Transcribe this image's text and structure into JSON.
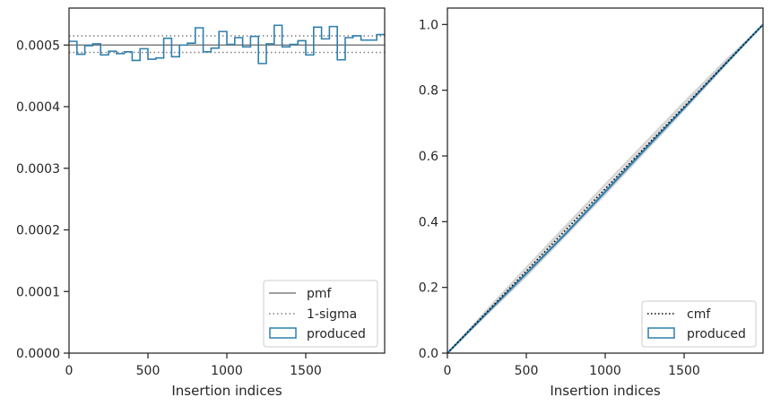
{
  "colors": {
    "produced": "#2f7fae",
    "pmf": "#7f7f7f",
    "sigma": "#7f7f7f",
    "cmf": "#000000",
    "spaghetti": "#d3d3d3",
    "axes": "#262626"
  },
  "chart_data": [
    {
      "type": "histogram",
      "xlabel": "Insertion indices",
      "ylabel": "",
      "xlim": [
        0,
        2000
      ],
      "ylim": [
        0,
        0.00056
      ],
      "x_ticks": [
        0,
        500,
        1000,
        1500
      ],
      "x_tick_labels": [
        "0",
        "500",
        "1000",
        "1500"
      ],
      "y_ticks": [
        0,
        0.0001,
        0.0002,
        0.0003,
        0.0004,
        0.0005
      ],
      "y_tick_labels": [
        "0.0000",
        "0.0001",
        "0.0002",
        "0.0003",
        "0.0004",
        "0.0005"
      ],
      "pmf": 0.0005,
      "sigma_band": [
        0.000488,
        0.000515
      ],
      "bin_width": 50,
      "bin_starts": [
        0,
        50,
        100,
        150,
        200,
        250,
        300,
        350,
        400,
        450,
        500,
        550,
        600,
        650,
        700,
        750,
        800,
        850,
        900,
        950,
        1000,
        1050,
        1100,
        1150,
        1200,
        1250,
        1300,
        1350,
        1400,
        1450,
        1500,
        1550,
        1600,
        1650,
        1700,
        1750,
        1800,
        1850,
        1900,
        1950
      ],
      "produced": [
        0.000506,
        0.000485,
        0.000499,
        0.000502,
        0.000484,
        0.00049,
        0.000486,
        0.000489,
        0.000475,
        0.000494,
        0.000477,
        0.000479,
        0.000511,
        0.000481,
        0.0005,
        0.000503,
        0.000528,
        0.000489,
        0.000495,
        0.000522,
        0.000501,
        0.000512,
        0.000497,
        0.000514,
        0.00047,
        0.000502,
        0.000532,
        0.000497,
        0.000501,
        0.000507,
        0.000484,
        0.000529,
        0.00051,
        0.00053,
        0.000476,
        0.000512,
        0.000515,
        0.000508,
        0.000508,
        0.000517
      ],
      "legend": {
        "position": "lower right",
        "entries": [
          "pmf",
          "1-sigma",
          "produced"
        ]
      }
    },
    {
      "type": "line",
      "xlabel": "Insertion indices",
      "ylabel": "",
      "xlim": [
        0,
        2000
      ],
      "ylim": [
        0,
        1.05
      ],
      "x_ticks": [
        0,
        500,
        1000,
        1500
      ],
      "x_tick_labels": [
        "0",
        "500",
        "1000",
        "1500"
      ],
      "y_ticks": [
        0,
        0.2,
        0.4,
        0.6,
        0.8,
        1.0
      ],
      "y_tick_labels": [
        "0.0",
        "0.2",
        "0.4",
        "0.6",
        "0.8",
        "1.0"
      ],
      "cmf": {
        "x": [
          0,
          2000
        ],
        "y": [
          0,
          1.0
        ]
      },
      "produced": {
        "x": [
          0,
          250,
          500,
          750,
          1000,
          1250,
          1500,
          1750,
          2000
        ],
        "y": [
          0,
          0.122,
          0.242,
          0.364,
          0.491,
          0.619,
          0.746,
          0.874,
          1.0
        ]
      },
      "spaghetti": [
        {
          "x": [
            0,
            250,
            500,
            750,
            1000,
            1250,
            1500,
            1750,
            2000
          ],
          "y": [
            0,
            0.13,
            0.258,
            0.384,
            0.51,
            0.636,
            0.761,
            0.883,
            1.0
          ]
        },
        {
          "x": [
            0,
            250,
            500,
            750,
            1000,
            1250,
            1500,
            1750,
            2000
          ],
          "y": [
            0,
            0.118,
            0.236,
            0.36,
            0.486,
            0.614,
            0.742,
            0.871,
            1.0
          ]
        },
        {
          "x": [
            0,
            250,
            500,
            750,
            1000,
            1250,
            1500,
            1750,
            2000
          ],
          "y": [
            0,
            0.127,
            0.251,
            0.38,
            0.503,
            0.63,
            0.756,
            0.88,
            1.0
          ]
        },
        {
          "x": [
            0,
            250,
            500,
            750,
            1000,
            1250,
            1500,
            1750,
            2000
          ],
          "y": [
            0,
            0.121,
            0.246,
            0.371,
            0.497,
            0.624,
            0.749,
            0.875,
            1.0
          ]
        },
        {
          "x": [
            0,
            250,
            500,
            750,
            1000,
            1250,
            1500,
            1750,
            2000
          ],
          "y": [
            0,
            0.133,
            0.262,
            0.389,
            0.515,
            0.64,
            0.765,
            0.886,
            1.0
          ]
        },
        {
          "x": [
            0,
            250,
            500,
            750,
            1000,
            1250,
            1500,
            1750,
            2000
          ],
          "y": [
            0,
            0.116,
            0.233,
            0.357,
            0.482,
            0.61,
            0.739,
            0.869,
            1.0
          ]
        }
      ],
      "legend": {
        "position": "lower right",
        "entries": [
          "cmf",
          "produced"
        ]
      }
    }
  ]
}
